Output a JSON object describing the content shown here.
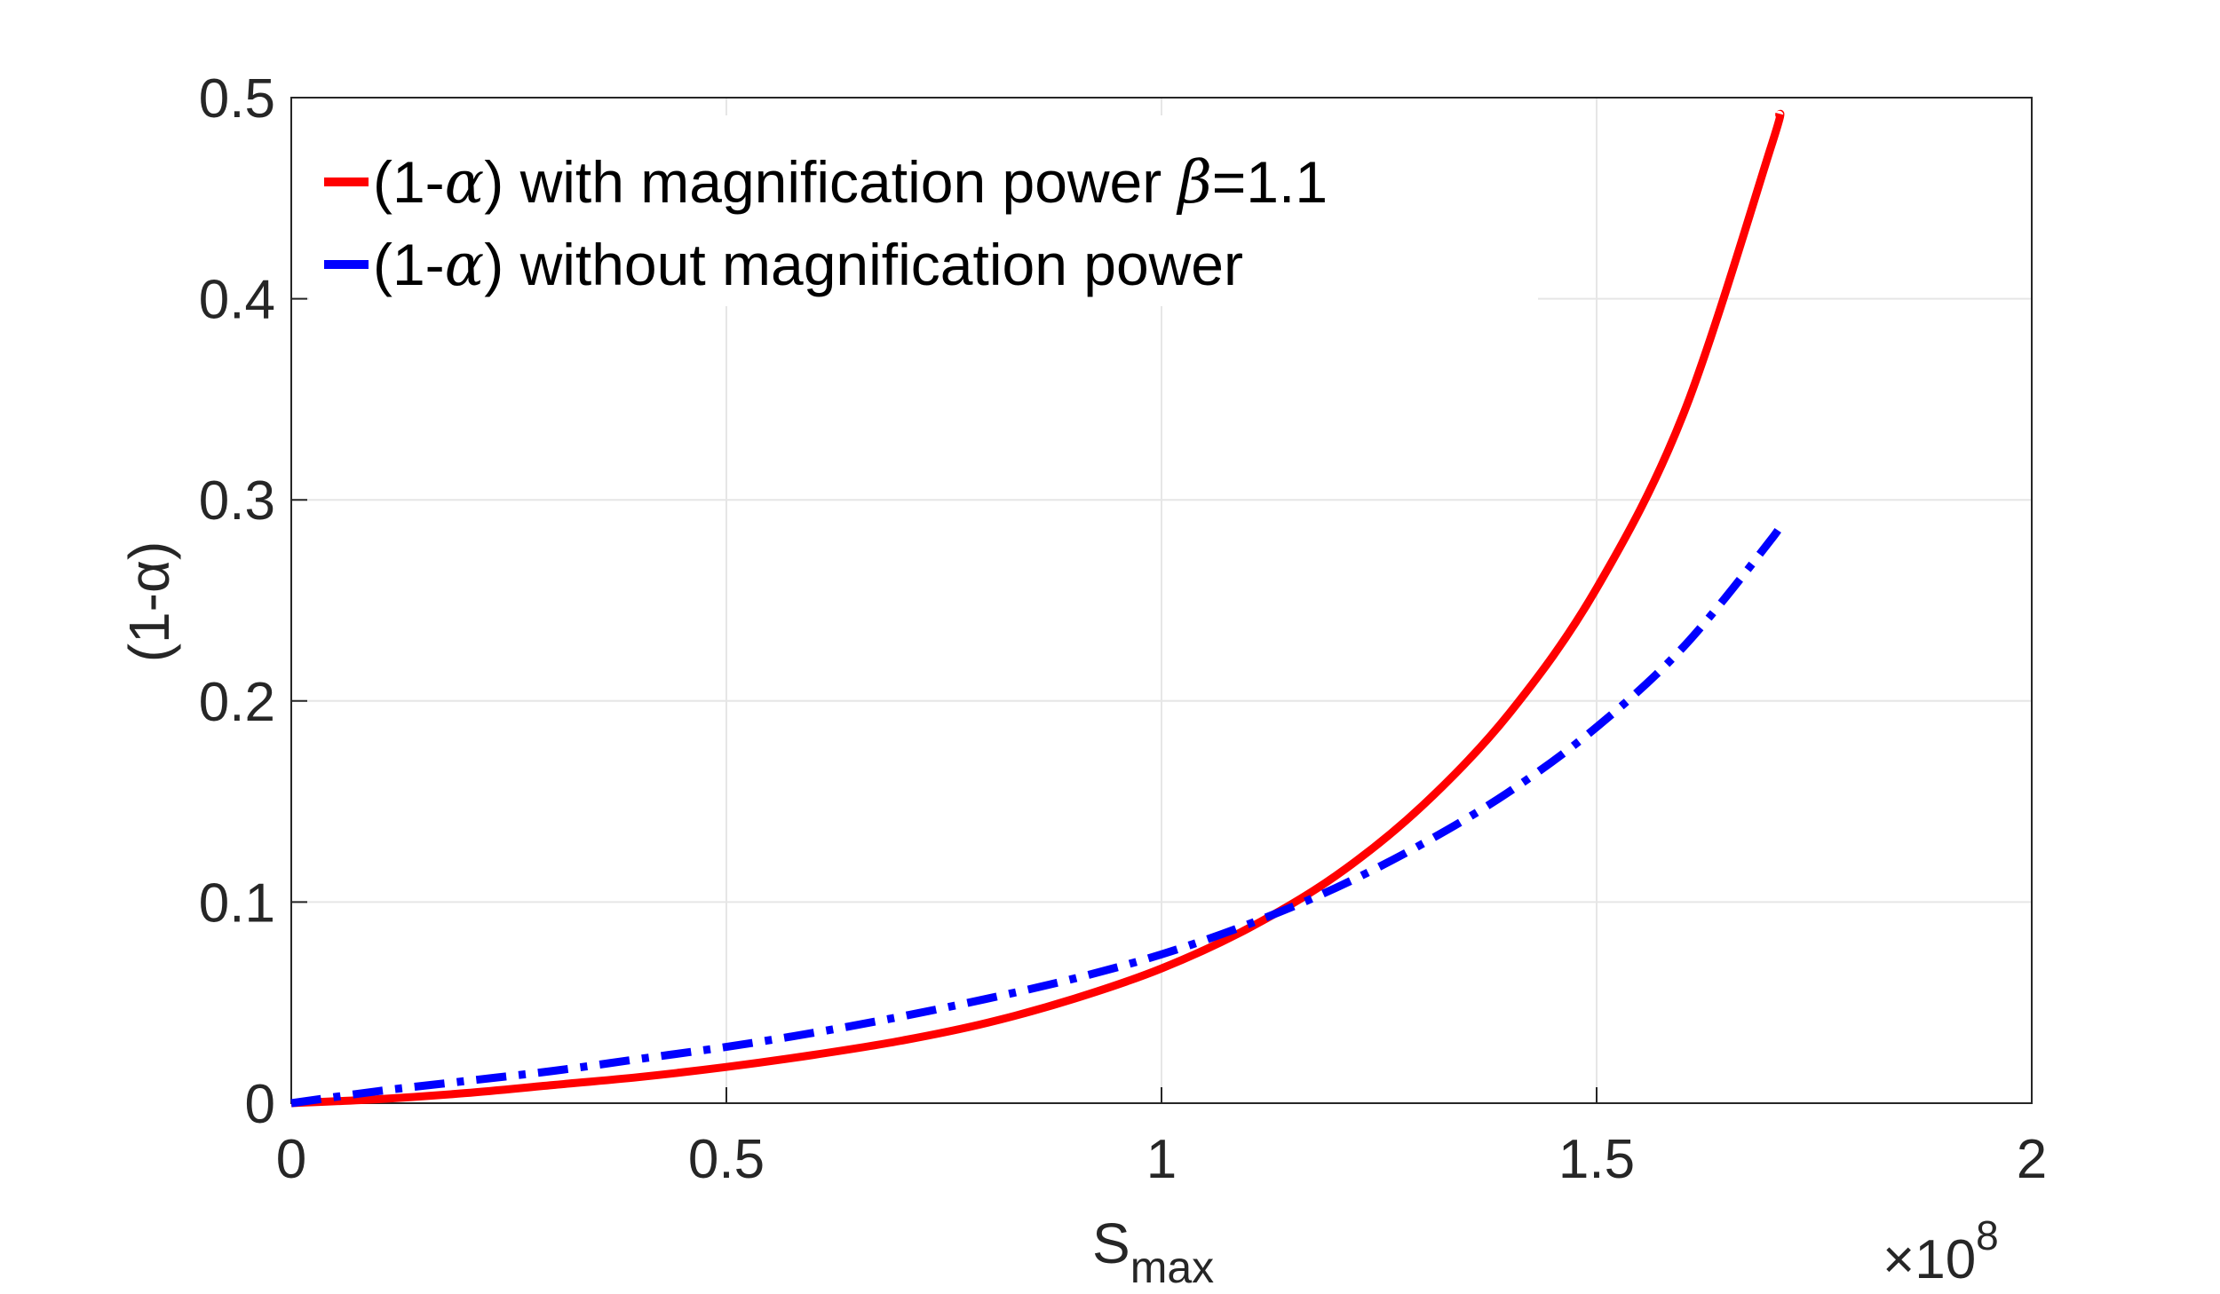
{
  "chart_data": {
    "type": "line",
    "xlabel": "S",
    "xlabel_sub": "max",
    "ylabel": "(1-α)",
    "x_multiplier": {
      "base": "×10",
      "exponent": "8"
    },
    "xlim": [
      0,
      2
    ],
    "ylim": [
      0,
      0.5
    ],
    "xticks": [
      0,
      0.5,
      1,
      1.5,
      2
    ],
    "xtick_labels": [
      "0",
      "0.5",
      "1",
      "1.5",
      "2"
    ],
    "yticks": [
      0,
      0.1,
      0.2,
      0.3,
      0.4,
      0.5
    ],
    "ytick_labels": [
      "0",
      "0.1",
      "0.2",
      "0.3",
      "0.4",
      "0.5"
    ],
    "grid": true,
    "legend_position": "top-left",
    "series": [
      {
        "name": "(1-α) with magnification power β=1.1",
        "legend_prefix": "(1-",
        "legend_alpha": "α",
        "legend_mid": ") with magnification power ",
        "legend_beta": "β",
        "legend_suffix": "=1.1",
        "color": "#ff0000",
        "style": "solid",
        "x": [
          0,
          0.1,
          0.2,
          0.3,
          0.4,
          0.5,
          0.6,
          0.7,
          0.8,
          0.9,
          1.0,
          1.1,
          1.2,
          1.3,
          1.4,
          1.5,
          1.6,
          1.7,
          1.71
        ],
        "y": [
          0,
          0.002,
          0.005,
          0.009,
          0.013,
          0.018,
          0.024,
          0.031,
          0.04,
          0.052,
          0.067,
          0.087,
          0.113,
          0.148,
          0.194,
          0.256,
          0.343,
          0.475,
          0.492
        ]
      },
      {
        "name": "(1-α) without magnification power",
        "legend_prefix": "(1-",
        "legend_alpha": "α",
        "legend_mid": ") without magnification power",
        "color": "#0000ff",
        "style": "dashdot",
        "x": [
          0,
          0.1,
          0.2,
          0.3,
          0.4,
          0.5,
          0.6,
          0.7,
          0.8,
          0.9,
          1.0,
          1.1,
          1.2,
          1.3,
          1.4,
          1.5,
          1.6,
          1.7,
          1.71
        ],
        "y": [
          0,
          0.006,
          0.011,
          0.016,
          0.022,
          0.028,
          0.035,
          0.043,
          0.052,
          0.062,
          0.074,
          0.089,
          0.107,
          0.129,
          0.155,
          0.187,
          0.227,
          0.28,
          0.288
        ]
      }
    ]
  }
}
